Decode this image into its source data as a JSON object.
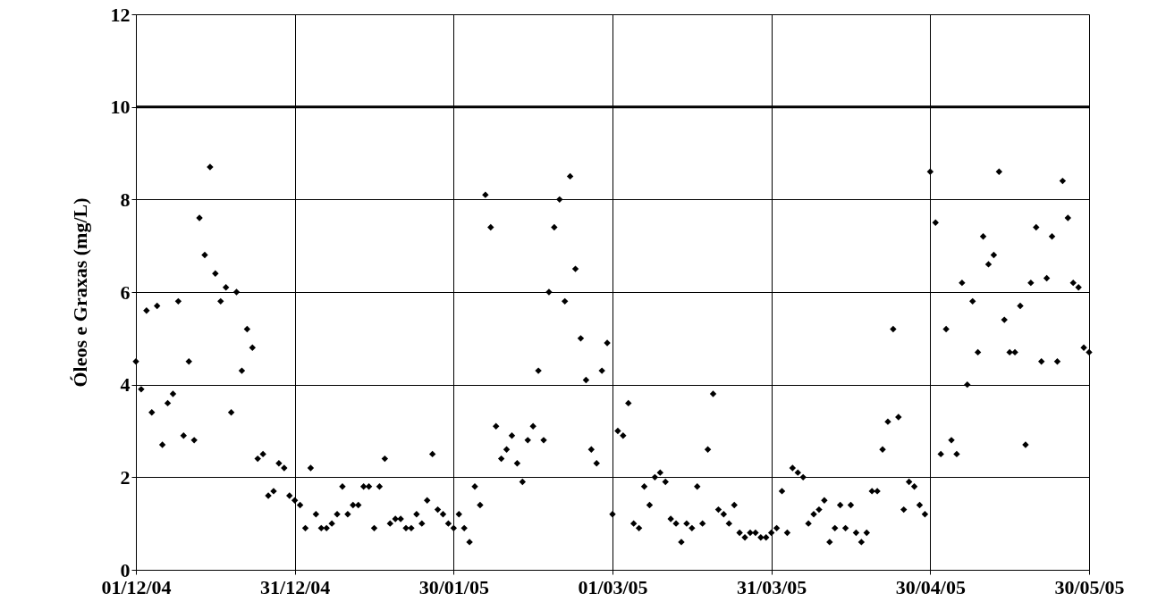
{
  "chart_data": {
    "type": "scatter",
    "ylabel": "Óleos e Graxas (mg/L)",
    "xlim": [
      "2004-12-01",
      "2005-05-30"
    ],
    "xticks": [
      {
        "value": "2004-12-01",
        "label": "01/12/04"
      },
      {
        "value": "2004-12-31",
        "label": "31/12/04"
      },
      {
        "value": "2005-01-30",
        "label": "30/01/05"
      },
      {
        "value": "2005-03-01",
        "label": "01/03/05"
      },
      {
        "value": "2005-03-31",
        "label": "31/03/05"
      },
      {
        "value": "2005-04-30",
        "label": "30/04/05"
      },
      {
        "value": "2005-05-30",
        "label": "30/05/05"
      }
    ],
    "ylim": [
      0,
      12
    ],
    "yticks": [
      0,
      2,
      4,
      6,
      8,
      10,
      12
    ],
    "grid": true,
    "marker": "diamond",
    "ref_lines": [
      {
        "axis": "y",
        "value": 10,
        "color": "#000000"
      }
    ],
    "series": [
      {
        "color": "#000000",
        "x": [
          "2004-12-01",
          "2004-12-02",
          "2004-12-03",
          "2004-12-04",
          "2004-12-05",
          "2004-12-06",
          "2004-12-07",
          "2004-12-08",
          "2004-12-09",
          "2004-12-10",
          "2004-12-11",
          "2004-12-12",
          "2004-12-13",
          "2004-12-14",
          "2004-12-15",
          "2004-12-16",
          "2004-12-17",
          "2004-12-18",
          "2004-12-19",
          "2004-12-20",
          "2004-12-21",
          "2004-12-22",
          "2004-12-23",
          "2004-12-24",
          "2004-12-25",
          "2004-12-26",
          "2004-12-27",
          "2004-12-28",
          "2004-12-29",
          "2004-12-30",
          "2004-12-31",
          "2005-01-01",
          "2005-01-02",
          "2005-01-03",
          "2005-01-04",
          "2005-01-05",
          "2005-01-06",
          "2005-01-07",
          "2005-01-08",
          "2005-01-09",
          "2005-01-10",
          "2005-01-11",
          "2005-01-12",
          "2005-01-13",
          "2005-01-14",
          "2005-01-15",
          "2005-01-16",
          "2005-01-17",
          "2005-01-18",
          "2005-01-19",
          "2005-01-20",
          "2005-01-21",
          "2005-01-22",
          "2005-01-23",
          "2005-01-24",
          "2005-01-25",
          "2005-01-26",
          "2005-01-27",
          "2005-01-28",
          "2005-01-29",
          "2005-01-30",
          "2005-01-31",
          "2005-02-01",
          "2005-02-02",
          "2005-02-03",
          "2005-02-04",
          "2005-02-05",
          "2005-02-06",
          "2005-02-07",
          "2005-02-08",
          "2005-02-09",
          "2005-02-10",
          "2005-02-11",
          "2005-02-12",
          "2005-02-13",
          "2005-02-14",
          "2005-02-15",
          "2005-02-16",
          "2005-02-17",
          "2005-02-18",
          "2005-02-19",
          "2005-02-20",
          "2005-02-21",
          "2005-02-22",
          "2005-02-23",
          "2005-02-24",
          "2005-02-25",
          "2005-02-26",
          "2005-02-27",
          "2005-02-28",
          "2005-03-01",
          "2005-03-02",
          "2005-03-03",
          "2005-03-04",
          "2005-03-05",
          "2005-03-06",
          "2005-03-07",
          "2005-03-08",
          "2005-03-09",
          "2005-03-10",
          "2005-03-11",
          "2005-03-12",
          "2005-03-13",
          "2005-03-14",
          "2005-03-15",
          "2005-03-16",
          "2005-03-17",
          "2005-03-18",
          "2005-03-19",
          "2005-03-20",
          "2005-03-21",
          "2005-03-22",
          "2005-03-23",
          "2005-03-24",
          "2005-03-25",
          "2005-03-26",
          "2005-03-27",
          "2005-03-28",
          "2005-03-29",
          "2005-03-30",
          "2005-03-31",
          "2005-04-01",
          "2005-04-02",
          "2005-04-03",
          "2005-04-04",
          "2005-04-05",
          "2005-04-06",
          "2005-04-07",
          "2005-04-08",
          "2005-04-09",
          "2005-04-10",
          "2005-04-11",
          "2005-04-12",
          "2005-04-13",
          "2005-04-14",
          "2005-04-15",
          "2005-04-16",
          "2005-04-17",
          "2005-04-18",
          "2005-04-19",
          "2005-04-20",
          "2005-04-21",
          "2005-04-22",
          "2005-04-23",
          "2005-04-24",
          "2005-04-25",
          "2005-04-26",
          "2005-04-27",
          "2005-04-28",
          "2005-04-29",
          "2005-04-30",
          "2005-05-01",
          "2005-05-02",
          "2005-05-03",
          "2005-05-04",
          "2005-05-05",
          "2005-05-06",
          "2005-05-07",
          "2005-05-08",
          "2005-05-09",
          "2005-05-10",
          "2005-05-11",
          "2005-05-12",
          "2005-05-13",
          "2005-05-14",
          "2005-05-15",
          "2005-05-16",
          "2005-05-17",
          "2005-05-18",
          "2005-05-19",
          "2005-05-20",
          "2005-05-21",
          "2005-05-22",
          "2005-05-23",
          "2005-05-24",
          "2005-05-25",
          "2005-05-26",
          "2005-05-27",
          "2005-05-28",
          "2005-05-29",
          "2005-05-30"
        ],
        "values": [
          4.5,
          3.9,
          5.6,
          3.4,
          5.7,
          2.7,
          3.6,
          3.8,
          5.8,
          2.9,
          4.5,
          2.8,
          7.6,
          6.8,
          8.7,
          6.4,
          5.8,
          6.1,
          3.4,
          6.0,
          4.3,
          5.2,
          4.8,
          2.4,
          2.5,
          1.6,
          1.7,
          2.3,
          2.2,
          1.6,
          1.5,
          1.4,
          0.9,
          2.2,
          1.2,
          0.9,
          0.9,
          1.0,
          1.2,
          1.8,
          1.2,
          1.4,
          1.4,
          1.8,
          1.8,
          0.9,
          1.8,
          2.4,
          1.0,
          1.1,
          1.1,
          0.9,
          0.9,
          1.2,
          1.0,
          1.5,
          2.5,
          1.3,
          1.2,
          1.0,
          0.9,
          1.2,
          0.9,
          0.6,
          1.8,
          1.4,
          8.1,
          7.4,
          3.1,
          2.4,
          2.6,
          2.9,
          2.3,
          1.9,
          2.8,
          3.1,
          4.3,
          2.8,
          6.0,
          7.4,
          8.0,
          5.8,
          8.5,
          6.5,
          5.0,
          4.1,
          2.6,
          2.3,
          4.3,
          4.9,
          1.2,
          3.0,
          2.9,
          3.6,
          1.0,
          0.9,
          1.8,
          1.4,
          2.0,
          2.1,
          1.9,
          1.1,
          1.0,
          0.6,
          1.0,
          0.9,
          1.8,
          1.0,
          2.6,
          3.8,
          1.3,
          1.2,
          1.0,
          1.4,
          0.8,
          0.7,
          0.8,
          0.8,
          0.7,
          0.7,
          0.8,
          0.9,
          1.7,
          0.8,
          2.2,
          2.1,
          2.0,
          1.0,
          1.2,
          1.3,
          1.5,
          0.6,
          0.9,
          1.4,
          0.9,
          1.4,
          0.8,
          0.6,
          0.8,
          1.7,
          1.7,
          2.6,
          3.2,
          5.2,
          3.3,
          1.3,
          1.9,
          1.8,
          1.4,
          1.2,
          8.6,
          7.5,
          2.5,
          5.2,
          2.8,
          2.5,
          6.2,
          4.0,
          5.8,
          4.7,
          7.2,
          6.6,
          6.8,
          8.6,
          5.4,
          4.7,
          4.7,
          5.7,
          2.7,
          6.2,
          7.4,
          4.5,
          6.3,
          7.2,
          4.5,
          8.4,
          7.6,
          6.2,
          6.1,
          4.8,
          4.7
        ]
      }
    ]
  }
}
